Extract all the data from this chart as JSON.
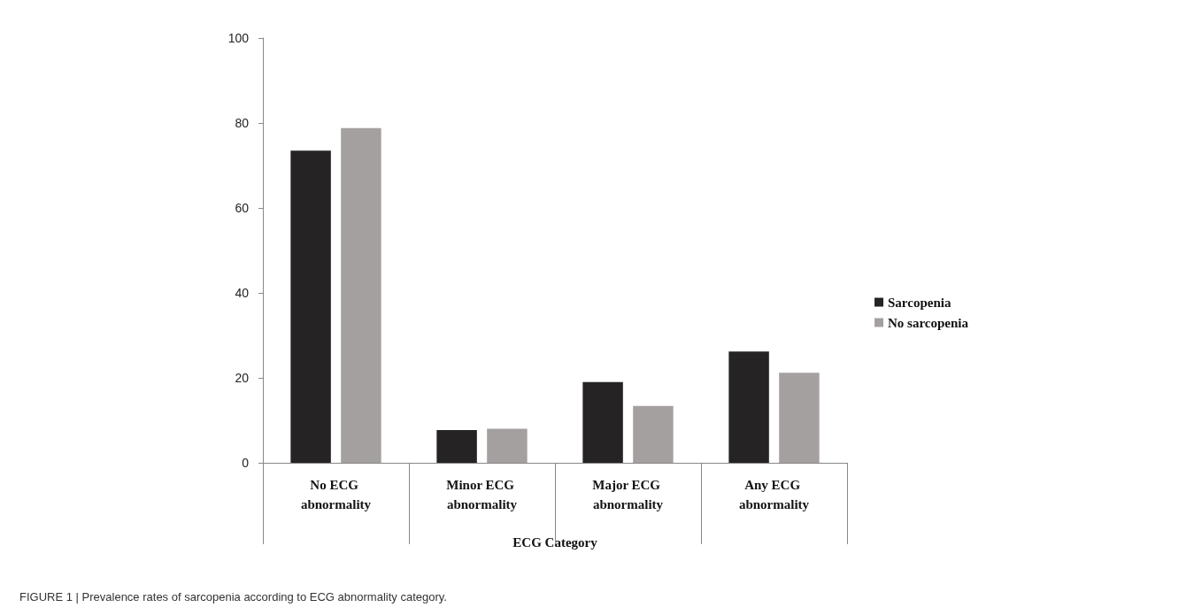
{
  "chart_data": {
    "type": "bar",
    "categories": [
      "No ECG abnormality",
      "Minor ECG abnormality",
      "Major ECG abnormality",
      "Any ECG abnormality"
    ],
    "series": [
      {
        "name": "Sarcopenia",
        "color": "#252324",
        "values": [
          73.5,
          7.7,
          19.0,
          26.2
        ]
      },
      {
        "name": "No sarcopenia",
        "color": "#a5a0a0",
        "values": [
          78.8,
          8.0,
          13.4,
          21.2
        ]
      }
    ],
    "xlabel": "ECG Category",
    "ylim": [
      0,
      100
    ],
    "yticks": [
      0,
      20,
      40,
      60,
      80,
      100
    ],
    "grid": false,
    "legend": "right",
    "annotations": [
      "FIGURE 1 | Prevalence rates of sarcopenia according to ECG abnormality category."
    ]
  }
}
